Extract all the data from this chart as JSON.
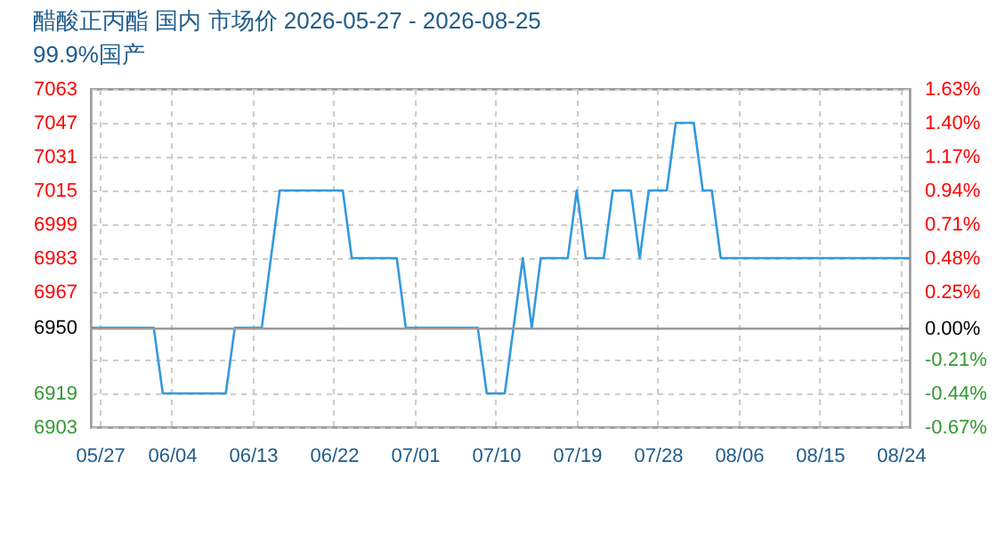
{
  "chart_data": {
    "type": "line",
    "title": "醋酸正丙酯 国内 市场价 2026-05-27 - 2026-08-25",
    "subtitle": "99.9%国产",
    "x": [
      "2026-05-26",
      "2026-06-02",
      "2026-06-03",
      "2026-06-10",
      "2026-06-11",
      "2026-06-14",
      "2026-06-16",
      "2026-06-23",
      "2026-06-24",
      "2026-06-29",
      "2026-06-30",
      "2026-07-08",
      "2026-07-09",
      "2026-07-11",
      "2026-07-13",
      "2026-07-14",
      "2026-07-15",
      "2026-07-18",
      "2026-07-19",
      "2026-07-20",
      "2026-07-22",
      "2026-07-23",
      "2026-07-25",
      "2026-07-26",
      "2026-07-27",
      "2026-07-29",
      "2026-07-30",
      "2026-08-01",
      "2026-08-02",
      "2026-08-03",
      "2026-08-04",
      "2026-08-25"
    ],
    "series": [
      {
        "color": "#3399dd",
        "values": [
          6950,
          6950,
          6919,
          6919,
          6950,
          6950,
          7015,
          7015,
          6983,
          6983,
          6950,
          6950,
          6919,
          6919,
          6983,
          6950,
          6983,
          6983,
          7015,
          6983,
          6983,
          7015,
          7015,
          6983,
          7015,
          7015,
          7047,
          7047,
          7015,
          7015,
          6983,
          6983
        ]
      }
    ],
    "xlim": [
      "2026-05-26",
      "2026-08-25"
    ],
    "xticks": [
      {
        "value": "2026-05-27",
        "label": "05/27"
      },
      {
        "value": "2026-06-04",
        "label": "06/04"
      },
      {
        "value": "2026-06-13",
        "label": "06/13"
      },
      {
        "value": "2026-06-22",
        "label": "06/22"
      },
      {
        "value": "2026-07-01",
        "label": "07/01"
      },
      {
        "value": "2026-07-10",
        "label": "07/10"
      },
      {
        "value": "2026-07-19",
        "label": "07/19"
      },
      {
        "value": "2026-07-28",
        "label": "07/28"
      },
      {
        "value": "2026-08-06",
        "label": "08/06"
      },
      {
        "value": "2026-08-15",
        "label": "08/15"
      },
      {
        "value": "2026-08-24",
        "label": "08/24"
      }
    ],
    "ylim": [
      6903,
      7063
    ],
    "yticks": [
      6903,
      6919,
      {
        "value": 6935,
        "label": null
      },
      6950,
      6967,
      6983,
      6999,
      7015,
      7031,
      7047,
      7063
    ],
    "y2lim": [
      -0.67,
      1.63
    ],
    "y2ticks": [
      {
        "value": -0.67,
        "label": "-0.67%"
      },
      {
        "value": -0.44,
        "label": "-0.44%"
      },
      {
        "value": -0.21,
        "label": "-0.21%"
      },
      {
        "value": 0,
        "label": "0.00%"
      },
      {
        "value": 0.25,
        "label": "0.25%"
      },
      {
        "value": 0.48,
        "label": "0.48%"
      },
      {
        "value": 0.71,
        "label": "0.71%"
      },
      {
        "value": 0.94,
        "label": "0.94%"
      },
      {
        "value": 1.17,
        "label": "1.17%"
      },
      {
        "value": 1.4,
        "label": "1.40%"
      },
      {
        "value": 1.63,
        "label": "1.63%"
      }
    ],
    "ref_lines": [
      {
        "axis": "y2",
        "value": 0,
        "color": "#999999"
      }
    ],
    "grid": true
  }
}
